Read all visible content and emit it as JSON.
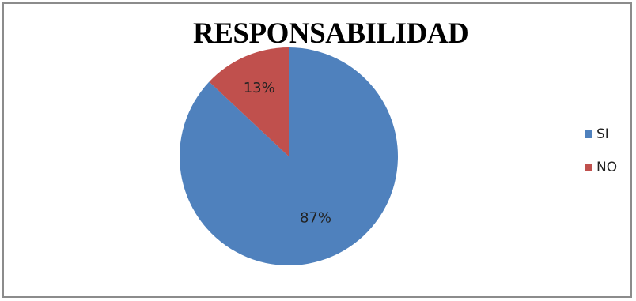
{
  "chart_data": {
    "type": "pie",
    "title": "RESPONSABILIDAD",
    "categories": [
      "SI",
      "NO"
    ],
    "values": [
      87,
      13
    ],
    "value_labels": [
      "87%",
      "13%"
    ],
    "colors": [
      "#4F81BD",
      "#C0504D"
    ],
    "legend_position": "right",
    "start_angle": "top",
    "direction": "clockwise"
  }
}
